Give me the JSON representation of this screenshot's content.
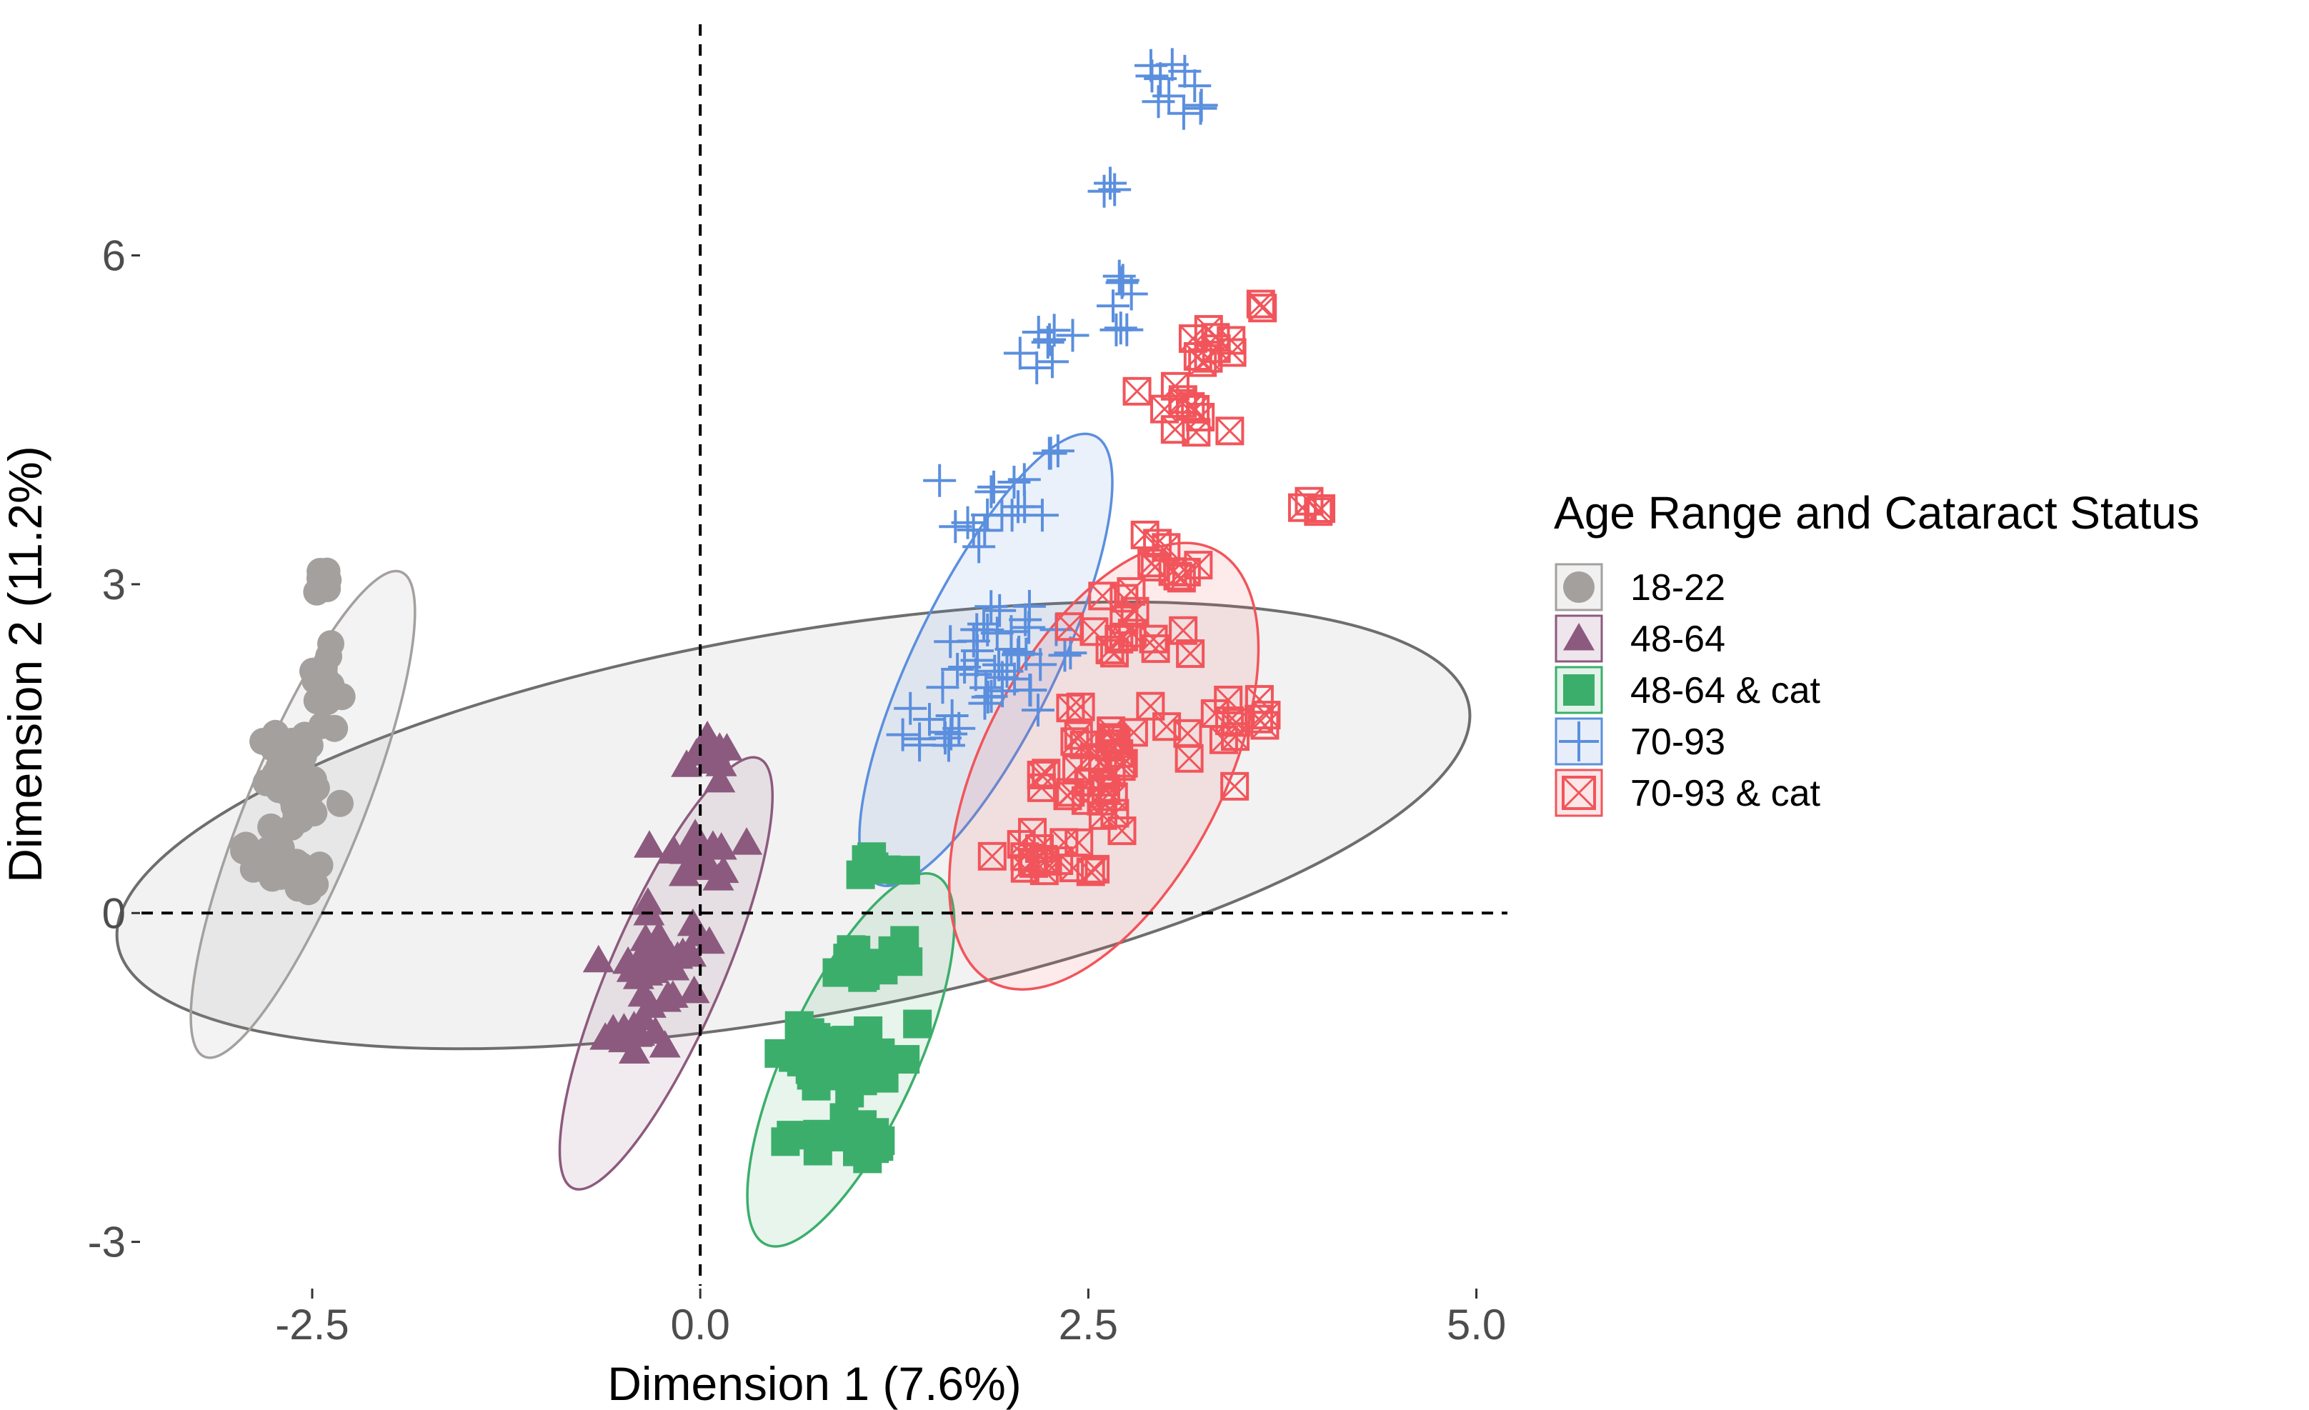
{
  "chart_data": {
    "type": "scatter",
    "title": "",
    "xlabel": "Dimension 1 (7.6%)",
    "ylabel": "Dimension 2 (11.2%)",
    "xlim": [
      -3.6,
      5.2
    ],
    "ylim": [
      -3.4,
      8.2
    ],
    "x_ticks": [
      {
        "value": -2.5,
        "label": "-2.5"
      },
      {
        "value": 0.0,
        "label": "0.0"
      },
      {
        "value": 2.5,
        "label": "2.5"
      },
      {
        "value": 5.0,
        "label": "5.0"
      }
    ],
    "y_ticks": [
      {
        "value": -3,
        "label": "-3"
      },
      {
        "value": 0,
        "label": "0"
      },
      {
        "value": 3,
        "label": "3"
      },
      {
        "value": 6,
        "label": "6"
      }
    ],
    "grid": false,
    "reference_lines": {
      "x": 0,
      "y": 0,
      "style": "dashed"
    },
    "legend": {
      "title": "Age Range and Cataract Status",
      "position": "right",
      "entries": [
        {
          "label": "18-22",
          "shape": "circle",
          "color": "#a3a09e"
        },
        {
          "label": "48-64",
          "shape": "triangle",
          "color": "#8c5a7e"
        },
        {
          "label": "48-64 & cat",
          "shape": "square",
          "color": "#3cae6b"
        },
        {
          "label": "70-93",
          "shape": "plus",
          "color": "#5b8fde"
        },
        {
          "label": "70-93 & cat",
          "shape": "boxcross",
          "color": "#f1555b"
        }
      ]
    },
    "overall_ellipse": {
      "cx": 0.6,
      "cy": 0.8,
      "rx": 4.42,
      "ry": 1.75,
      "angle_deg": 10,
      "stroke": "#6e6e6e",
      "fill": "#f0f0f0"
    },
    "series": [
      {
        "name": "18-22",
        "shape": "circle",
        "color": "#a3a09e",
        "ellipse": {
          "cx": -2.56,
          "cy": 0.9,
          "rx": 2.3,
          "ry": 0.38,
          "angle_deg": 74
        },
        "clusters": [
          {
            "x": -2.42,
            "y": 3.02,
            "sx": 0.04,
            "sy": 0.06,
            "n": 8
          },
          {
            "x": -2.44,
            "y": 2.1,
            "sx": 0.06,
            "sy": 0.12,
            "n": 14
          },
          {
            "x": -2.6,
            "y": 1.2,
            "sx": 0.12,
            "sy": 0.25,
            "n": 40
          },
          {
            "x": -2.72,
            "y": 0.45,
            "sx": 0.12,
            "sy": 0.12,
            "n": 22
          }
        ]
      },
      {
        "name": "48-64",
        "shape": "triangle",
        "color": "#8c5a7e",
        "ellipse": {
          "cx": -0.22,
          "cy": -0.55,
          "rx": 2.05,
          "ry": 0.37,
          "angle_deg": 73
        },
        "clusters": [
          {
            "x": 0.06,
            "y": 1.4,
            "sx": 0.07,
            "sy": 0.1,
            "n": 12
          },
          {
            "x": -0.02,
            "y": 0.5,
            "sx": 0.12,
            "sy": 0.12,
            "n": 18
          },
          {
            "x": -0.2,
            "y": -0.4,
            "sx": 0.14,
            "sy": 0.25,
            "n": 30
          },
          {
            "x": -0.4,
            "y": -1.1,
            "sx": 0.12,
            "sy": 0.08,
            "n": 14
          }
        ]
      },
      {
        "name": "48-64 & cat",
        "shape": "square",
        "color": "#3cae6b",
        "ellipse": {
          "cx": 0.97,
          "cy": -1.34,
          "rx": 1.77,
          "ry": 0.43,
          "angle_deg": 72
        },
        "clusters": [
          {
            "x": 1.15,
            "y": 0.45,
            "sx": 0.12,
            "sy": 0.05,
            "n": 8
          },
          {
            "x": 1.12,
            "y": -0.45,
            "sx": 0.14,
            "sy": 0.1,
            "n": 16
          },
          {
            "x": 0.95,
            "y": -1.25,
            "sx": 0.22,
            "sy": 0.2,
            "n": 34
          },
          {
            "x": 0.8,
            "y": -2.05,
            "sx": 0.18,
            "sy": 0.1,
            "n": 16
          }
        ]
      },
      {
        "name": "70-93",
        "shape": "plus",
        "color": "#5b8fde",
        "ellipse": {
          "cx": 1.84,
          "cy": 2.31,
          "rx": 2.16,
          "ry": 0.47,
          "angle_deg": 71
        },
        "clusters": [
          {
            "x": 2.95,
            "y": 7.6,
            "sx": 0.1,
            "sy": 0.12,
            "n": 8
          },
          {
            "x": 3.15,
            "y": 7.35,
            "sx": 0.05,
            "sy": 0.05,
            "n": 3
          },
          {
            "x": 2.7,
            "y": 6.6,
            "sx": 0.05,
            "sy": 0.04,
            "n": 3
          },
          {
            "x": 2.72,
            "y": 5.7,
            "sx": 0.05,
            "sy": 0.1,
            "n": 5
          },
          {
            "x": 2.72,
            "y": 5.3,
            "sx": 0.04,
            "sy": 0.05,
            "n": 3
          },
          {
            "x": 2.2,
            "y": 5.15,
            "sx": 0.1,
            "sy": 0.12,
            "n": 8
          },
          {
            "x": 2.25,
            "y": 4.2,
            "sx": 0.05,
            "sy": 0.05,
            "n": 3
          },
          {
            "x": 1.95,
            "y": 3.7,
            "sx": 0.15,
            "sy": 0.15,
            "n": 16
          },
          {
            "x": 1.9,
            "y": 2.3,
            "sx": 0.2,
            "sy": 0.25,
            "n": 40
          },
          {
            "x": 1.5,
            "y": 1.65,
            "sx": 0.12,
            "sy": 0.08,
            "n": 10
          }
        ]
      },
      {
        "name": "70-93 & cat",
        "shape": "boxcross",
        "color": "#f1555b",
        "ellipse": {
          "cx": 2.6,
          "cy": 1.34,
          "rx": 2.1,
          "ry": 0.8,
          "angle_deg": 70
        },
        "clusters": [
          {
            "x": 3.6,
            "y": 5.55,
            "sx": 0.03,
            "sy": 0.03,
            "n": 2
          },
          {
            "x": 3.3,
            "y": 5.15,
            "sx": 0.12,
            "sy": 0.1,
            "n": 8
          },
          {
            "x": 3.1,
            "y": 4.6,
            "sx": 0.12,
            "sy": 0.18,
            "n": 12
          },
          {
            "x": 3.95,
            "y": 3.7,
            "sx": 0.05,
            "sy": 0.05,
            "n": 4
          },
          {
            "x": 3.05,
            "y": 3.2,
            "sx": 0.15,
            "sy": 0.15,
            "n": 10
          },
          {
            "x": 2.75,
            "y": 2.6,
            "sx": 0.15,
            "sy": 0.2,
            "n": 16
          },
          {
            "x": 3.45,
            "y": 1.7,
            "sx": 0.12,
            "sy": 0.22,
            "n": 12
          },
          {
            "x": 2.5,
            "y": 1.3,
            "sx": 0.22,
            "sy": 0.35,
            "n": 40
          },
          {
            "x": 2.2,
            "y": 0.5,
            "sx": 0.15,
            "sy": 0.08,
            "n": 14
          }
        ]
      }
    ]
  }
}
